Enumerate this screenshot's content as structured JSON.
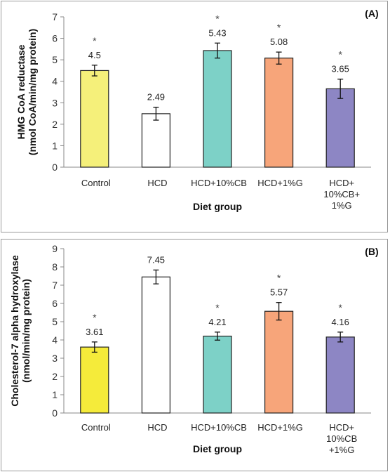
{
  "chart_data": [
    {
      "panel_label": "(A)",
      "type": "bar",
      "categories": [
        "Control",
        "HCD",
        "HCD+10%CB",
        "HCD+1%G",
        "HCD+ 10%CB+ 1%G"
      ],
      "category_lines": [
        [
          "Control"
        ],
        [
          "HCD"
        ],
        [
          "HCD+10%CB"
        ],
        [
          "HCD+1%G"
        ],
        [
          "HCD+",
          "10%CB+",
          "1%G"
        ]
      ],
      "values": [
        4.5,
        2.49,
        5.43,
        5.08,
        3.65
      ],
      "errors": [
        0.25,
        0.3,
        0.35,
        0.28,
        0.45
      ],
      "significance": [
        "*",
        "",
        "*",
        "*",
        "*"
      ],
      "colors": [
        "#f5f07a",
        "#ffffff",
        "#7dd1c7",
        "#f7a57a",
        "#8d86c4"
      ],
      "ylabel_lines": [
        "HMG CoA reductase",
        "(nmol CoA/min/mg protein)"
      ],
      "xlabel": "Diet group",
      "ylim": [
        0,
        7
      ],
      "yticks": [
        0,
        1,
        2,
        3,
        4,
        5,
        6,
        7
      ]
    },
    {
      "panel_label": "(B)",
      "type": "bar",
      "categories": [
        "Control",
        "HCD",
        "HCD+10%CB",
        "HCD+1%G",
        "HCD+ 10%CB +1%G"
      ],
      "category_lines": [
        [
          "Control"
        ],
        [
          "HCD"
        ],
        [
          "HCD+10%CB"
        ],
        [
          "HCD+1%G"
        ],
        [
          "HCD+",
          "10%CB",
          "+1%G"
        ]
      ],
      "values": [
        3.61,
        7.45,
        4.21,
        5.57,
        4.16
      ],
      "errors": [
        0.28,
        0.38,
        0.22,
        0.48,
        0.27
      ],
      "significance": [
        "*",
        "",
        "*",
        "*",
        "*"
      ],
      "colors": [
        "#f5eb3a",
        "#ffffff",
        "#7dd1c7",
        "#f7a57a",
        "#8d86c4"
      ],
      "ylabel_lines": [
        "Cholesterol-7 alpha hydroxylase",
        "(nmol/min/mg protein)"
      ],
      "xlabel": "Diet group",
      "ylim": [
        0,
        9
      ],
      "yticks": [
        0,
        1,
        2,
        3,
        4,
        5,
        6,
        7,
        8,
        9
      ]
    }
  ]
}
